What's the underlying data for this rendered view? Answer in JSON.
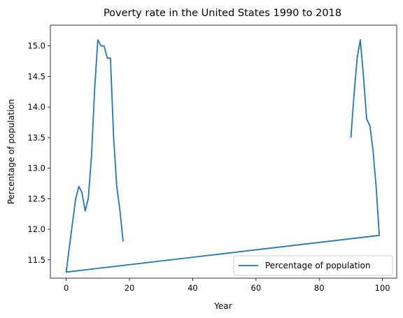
{
  "chart_data": {
    "type": "line",
    "title": "Poverty rate in the United States 1990 to 2018",
    "xlabel": "Year",
    "ylabel": "Percentage of population",
    "xlim": [
      -5,
      104.5
    ],
    "ylim": [
      11.2,
      15.34
    ],
    "xticks": [
      0,
      20,
      40,
      60,
      80,
      100
    ],
    "yticks": [
      11.5,
      12.0,
      12.5,
      13.0,
      13.5,
      14.0,
      14.5,
      15.0
    ],
    "ytick_labels": [
      "11.5",
      "12.0",
      "12.5",
      "13.0",
      "13.5",
      "14.0",
      "14.5",
      "15.0"
    ],
    "grid": false,
    "legend_position": "lower-right",
    "color": "#1f77b4",
    "series": [
      {
        "name": "Percentage of population",
        "x": [
          90,
          91,
          92,
          93,
          94,
          95,
          96,
          97,
          98,
          99,
          0,
          1,
          2,
          3,
          4,
          5,
          6,
          7,
          8,
          9,
          10,
          11,
          12,
          13,
          14,
          15,
          16,
          17,
          18
        ],
        "y": [
          13.5,
          14.2,
          14.8,
          15.1,
          14.5,
          13.8,
          13.7,
          13.3,
          12.7,
          11.9,
          11.3,
          11.7,
          12.1,
          12.5,
          12.7,
          12.6,
          12.3,
          12.5,
          13.2,
          14.3,
          15.1,
          15.0,
          15.0,
          14.8,
          14.8,
          13.5,
          12.7,
          12.3,
          11.8
        ]
      }
    ]
  }
}
